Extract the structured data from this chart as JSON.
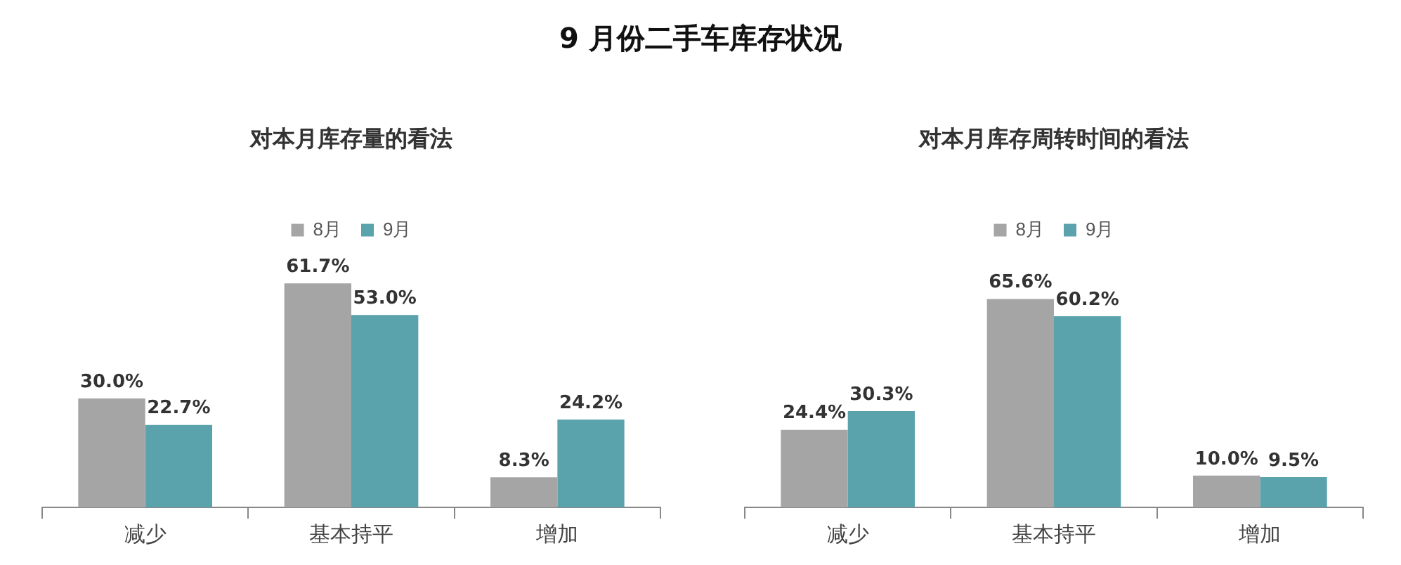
{
  "chart_data": [
    {
      "type": "other",
      "title": "9 月份二手车库存状况"
    },
    {
      "type": "bar",
      "title": "对本月库存量的看法",
      "categories": [
        "减少",
        "基本持平",
        "增加"
      ],
      "legend": "top",
      "grid": false,
      "series": [
        {
          "name": "8月",
          "color": "#a5a5a5",
          "values": [
            30.0,
            61.7,
            8.3
          ],
          "value_labels": [
            "30.0%",
            "61.7%",
            "8.3%"
          ]
        },
        {
          "name": "9月",
          "color": "#5aa3ad",
          "values": [
            22.7,
            53.0,
            24.2
          ],
          "value_labels": [
            "22.7%",
            "53.0%",
            "24.2%"
          ]
        }
      ]
    },
    {
      "type": "bar",
      "title": "对本月库存周转时间的看法",
      "categories": [
        "减少",
        "基本持平",
        "增加"
      ],
      "legend": "top",
      "grid": false,
      "series": [
        {
          "name": "8月",
          "color": "#a5a5a5",
          "values": [
            24.4,
            65.6,
            10.0
          ],
          "value_labels": [
            "24.4%",
            "65.6%",
            "10.0%"
          ]
        },
        {
          "name": "9月",
          "color": "#5aa3ad",
          "values": [
            30.3,
            60.2,
            9.5
          ],
          "value_labels": [
            "30.3%",
            "60.2%",
            "9.5%"
          ]
        }
      ]
    }
  ]
}
